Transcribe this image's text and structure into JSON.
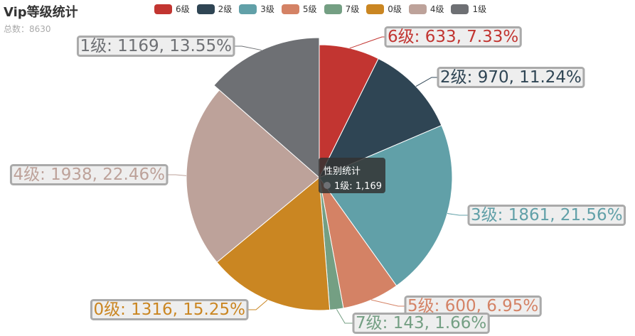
{
  "title": "Vip等级统计",
  "subtitle": "总数：8630",
  "tooltip": {
    "title": "性别统计",
    "item": "1级: 1,169",
    "color": "#6e7074"
  },
  "chart_data": {
    "type": "pie",
    "title": "Vip等级统计",
    "subtitle": "总数：8630",
    "total": 8630,
    "legend_position": "top-center",
    "slices": [
      {
        "name": "6级",
        "value": 633,
        "percent": "7.33%",
        "color": "#c23531",
        "label": "6级: 633, 7.33%"
      },
      {
        "name": "2级",
        "value": 970,
        "percent": "11.24%",
        "color": "#2f4554",
        "label": "2级: 970, 11.24%"
      },
      {
        "name": "3级",
        "value": 1861,
        "percent": "21.56%",
        "color": "#61a0a8",
        "label": "3级: 1861, 21.56%"
      },
      {
        "name": "5级",
        "value": 600,
        "percent": "6.95%",
        "color": "#d48265",
        "label": "5级: 600, 6.95%"
      },
      {
        "name": "7级",
        "value": 143,
        "percent": "1.66%",
        "color": "#749f83",
        "label": "7级: 143, 1.66%"
      },
      {
        "name": "0级",
        "value": 1316,
        "percent": "15.25%",
        "color": "#ca8622",
        "label": "0级: 1316, 15.25%"
      },
      {
        "name": "4级",
        "value": 1938,
        "percent": "22.46%",
        "color": "#bda29a",
        "label": "4级: 1938, 22.46%"
      },
      {
        "name": "1级",
        "value": 1169,
        "percent": "13.55%",
        "color": "#6e7074",
        "label": "1级: 1169, 13.55%",
        "emphasized": true
      }
    ]
  }
}
